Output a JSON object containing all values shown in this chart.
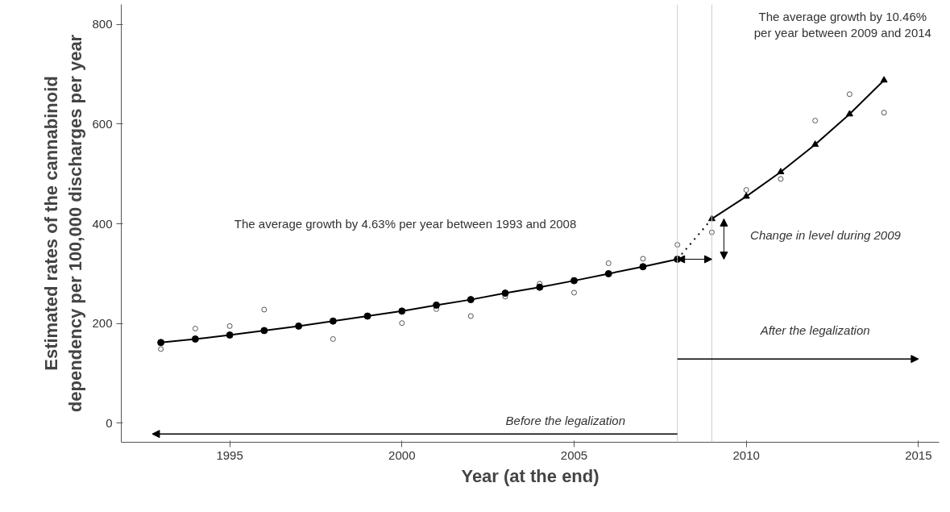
{
  "chart_data": {
    "type": "line",
    "xlabel": "Year (at the end)",
    "ylabel": "Estimated rates of the cannabinoid\ndependency per 100,000 discharges per year",
    "series": [
      {
        "type": "scatter",
        "color": "#555555",
        "marker": "circle",
        "x": [
          1993,
          1994,
          1995,
          1996,
          1997,
          1998,
          1999,
          2000,
          2001,
          2002,
          2003,
          2004,
          2005,
          2006,
          2007,
          2008,
          2009,
          2010,
          2011,
          2012,
          2013,
          2014
        ],
        "values": [
          149,
          190,
          195,
          228,
          null,
          169,
          null,
          201,
          229,
          215,
          254,
          280,
          262,
          321,
          330,
          358,
          383,
          468,
          490,
          607,
          660,
          623
        ]
      },
      {
        "color": "#000000",
        "marker": "circle",
        "line_style": "solid",
        "x": [
          1993,
          1994,
          1995,
          1996,
          1997,
          1998,
          1999,
          2000,
          2001,
          2002,
          2003,
          2004,
          2005,
          2006,
          2007,
          2008
        ],
        "values": [
          162,
          169,
          177,
          186,
          195,
          205,
          215,
          225,
          237,
          248,
          261,
          273,
          286,
          300,
          314,
          329
        ]
      },
      {
        "color": "#000000",
        "line_style": "dotted",
        "x": [
          2008,
          2009
        ],
        "values": [
          329,
          410
        ]
      },
      {
        "color": "#000000",
        "marker": "triangle",
        "line_style": "solid",
        "x": [
          2009,
          2010,
          2011,
          2012,
          2013,
          2014
        ],
        "values": [
          410,
          455,
          504,
          559,
          620,
          688
        ]
      }
    ],
    "annotations": [
      "The average growth by 4.63% per year between 1993 and 2008",
      "The average growth by 10.46%\nper year between 2009 and 2014",
      "Change in level during 2009",
      "After the legalization",
      "Before the legalization"
    ],
    "ref_lines": [
      {
        "axis": "x",
        "value": 2008,
        "color": "#cccccc"
      },
      {
        "axis": "x",
        "value": 2009,
        "color": "#cccccc"
      }
    ],
    "xlim": [
      1991.85,
      2015.6
    ],
    "xticks": [
      1995,
      2000,
      2005,
      2010,
      2015
    ],
    "ylim": [
      -38,
      840
    ],
    "yticks": [
      0,
      200,
      400,
      600,
      800
    ],
    "grid": false
  }
}
